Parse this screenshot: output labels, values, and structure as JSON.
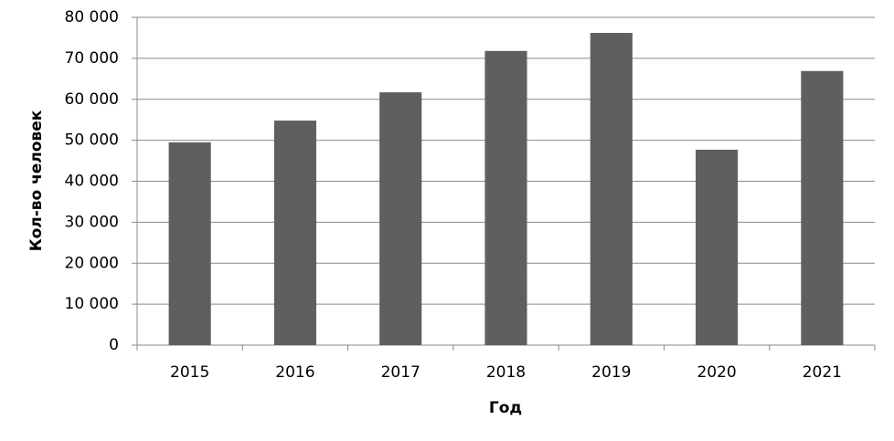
{
  "chart_data": {
    "type": "bar",
    "x_label": "Год",
    "y_label": "Кол-во человек",
    "categories": [
      "2015",
      "2016",
      "2017",
      "2018",
      "2019",
      "2020",
      "2021"
    ],
    "values": [
      49500,
      54800,
      61700,
      71800,
      76200,
      47700,
      66900
    ],
    "color": "#5f5f5f",
    "ylim": [
      0,
      80000
    ],
    "yticks": [
      0,
      {
        "value": 10000,
        "label": "10 000"
      },
      {
        "value": 20000,
        "label": "20 000"
      },
      {
        "value": 30000,
        "label": "30 000"
      },
      {
        "value": 40000,
        "label": "40 000"
      },
      {
        "value": 50000,
        "label": "50 000"
      },
      {
        "value": 60000,
        "label": "60 000"
      },
      {
        "value": 70000,
        "label": "70 000"
      },
      {
        "value": 80000,
        "label": "80 000"
      }
    ],
    "grid": true
  }
}
